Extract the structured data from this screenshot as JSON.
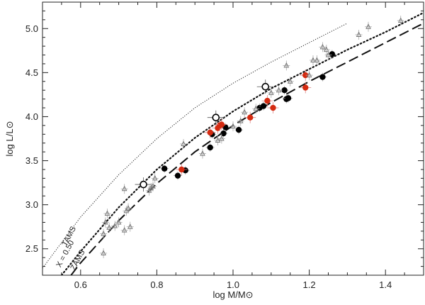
{
  "chart_data": {
    "type": "scatter",
    "title": "",
    "xlabel": "log M/M⊙",
    "ylabel": "log L/L⊙",
    "xlim": [
      0.5,
      1.5
    ],
    "ylim": [
      2.2,
      5.3
    ],
    "x_ticks": [
      "0.6",
      "0.8",
      "1.0",
      "1.2",
      "1.4"
    ],
    "y_ticks": [
      "2.5",
      "3.0",
      "3.5",
      "4.0",
      "4.5",
      "5.0"
    ],
    "grid": false,
    "minor_ticks": true,
    "curves": [
      {
        "label": "TAMS",
        "style": "dotted-fine",
        "color": "#222222",
        "points": [
          [
            0.5,
            2.28
          ],
          [
            0.6,
            2.86
          ],
          [
            0.7,
            3.34
          ],
          [
            0.8,
            3.75
          ],
          [
            0.9,
            4.1
          ],
          [
            1.0,
            4.38
          ],
          [
            1.1,
            4.62
          ],
          [
            1.2,
            4.84
          ],
          [
            1.3,
            5.06
          ]
        ]
      },
      {
        "label": "X = 0.50",
        "style": "dotted-coarse",
        "color": "#111111",
        "points": [
          [
            0.55,
            2.2
          ],
          [
            0.6,
            2.47
          ],
          [
            0.7,
            2.97
          ],
          [
            0.8,
            3.4
          ],
          [
            0.9,
            3.76
          ],
          [
            1.0,
            4.06
          ],
          [
            1.1,
            4.32
          ],
          [
            1.2,
            4.54
          ],
          [
            1.3,
            4.76
          ],
          [
            1.4,
            4.96
          ],
          [
            1.5,
            5.18
          ]
        ]
      },
      {
        "label": "ZAMS",
        "style": "dashed",
        "color": "#111111",
        "points": [
          [
            0.575,
            2.2
          ],
          [
            0.6,
            2.34
          ],
          [
            0.7,
            2.82
          ],
          [
            0.8,
            3.24
          ],
          [
            0.9,
            3.6
          ],
          [
            1.0,
            3.9
          ],
          [
            1.1,
            4.16
          ],
          [
            1.2,
            4.4
          ],
          [
            1.3,
            4.62
          ],
          [
            1.4,
            4.84
          ],
          [
            1.5,
            5.06
          ]
        ]
      }
    ],
    "series": [
      {
        "marker": "filled-circle-black",
        "color": "#000000",
        "points": [
          [
            0.82,
            3.41
          ],
          [
            0.855,
            3.33
          ],
          [
            0.875,
            3.39
          ],
          [
            0.94,
            3.65
          ],
          [
            0.945,
            3.8
          ],
          [
            0.975,
            3.81
          ],
          [
            0.98,
            3.88
          ],
          [
            1.015,
            3.85
          ],
          [
            1.07,
            4.1
          ],
          [
            1.08,
            4.12
          ],
          [
            1.135,
            4.3
          ],
          [
            1.14,
            4.2
          ],
          [
            1.145,
            4.21
          ],
          [
            1.235,
            4.45
          ],
          [
            1.26,
            4.71
          ]
        ]
      },
      {
        "marker": "filled-circle-red",
        "color": "#d42a10",
        "points": [
          [
            0.865,
            3.4
          ],
          [
            0.94,
            3.82
          ],
          [
            0.96,
            3.87
          ],
          [
            0.965,
            3.9
          ],
          [
            0.97,
            3.91
          ],
          [
            1.045,
            3.99
          ],
          [
            1.09,
            4.18
          ],
          [
            1.105,
            4.1
          ],
          [
            1.19,
            4.47
          ],
          [
            1.19,
            4.33
          ]
        ]
      },
      {
        "marker": "open-circle",
        "color": "#000000",
        "points": [
          [
            0.765,
            3.23
          ],
          [
            0.955,
            3.99
          ],
          [
            1.085,
            4.34
          ]
        ]
      },
      {
        "marker": "open-triangle",
        "color": "#777777",
        "points": [
          [
            0.66,
            2.45
          ],
          [
            0.66,
            2.67
          ],
          [
            0.665,
            2.8
          ],
          [
            0.67,
            2.9
          ],
          [
            0.675,
            2.74
          ],
          [
            0.69,
            2.76
          ],
          [
            0.7,
            2.8
          ],
          [
            0.715,
            2.71
          ],
          [
            0.715,
            3.18
          ],
          [
            0.72,
            2.93
          ],
          [
            0.725,
            2.96
          ],
          [
            0.73,
            2.75
          ],
          [
            0.78,
            3.16
          ],
          [
            0.785,
            3.19
          ],
          [
            0.79,
            3.21
          ],
          [
            0.795,
            3.3
          ],
          [
            0.87,
            3.69
          ],
          [
            0.92,
            3.58
          ],
          [
            0.96,
            3.73
          ],
          [
            0.97,
            3.75
          ],
          [
            1.0,
            3.89
          ],
          [
            1.02,
            3.95
          ],
          [
            1.03,
            4.05
          ],
          [
            1.06,
            4.09
          ],
          [
            1.1,
            4.27
          ],
          [
            1.12,
            4.3
          ],
          [
            1.14,
            4.58
          ],
          [
            1.15,
            4.4
          ],
          [
            1.2,
            4.47
          ],
          [
            1.21,
            4.64
          ],
          [
            1.22,
            4.64
          ],
          [
            1.235,
            4.79
          ],
          [
            1.245,
            4.76
          ],
          [
            1.25,
            4.7
          ],
          [
            1.33,
            4.93
          ],
          [
            1.355,
            5.02
          ],
          [
            1.44,
            5.09
          ]
        ]
      }
    ]
  }
}
